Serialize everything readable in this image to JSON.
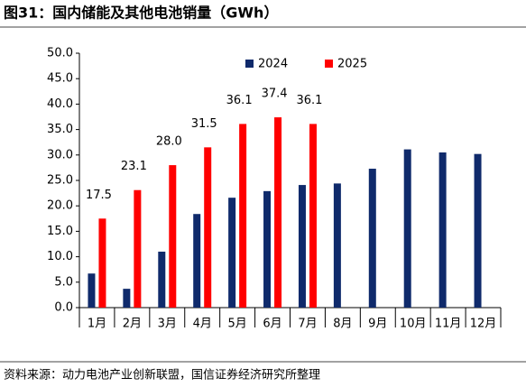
{
  "chart_data": {
    "type": "bar",
    "title": "图31：国内储能及其他电池销量（GWh）",
    "source": "资料来源：动力电池产业创新联盟，国信证券经济研究所整理",
    "categories": [
      "1月",
      "2月",
      "3月",
      "4月",
      "5月",
      "6月",
      "7月",
      "8月",
      "9月",
      "10月",
      "11月",
      "12月"
    ],
    "series": [
      {
        "name": "2024",
        "color": "#0f2a6b",
        "values": [
          6.7,
          3.7,
          11.0,
          18.4,
          21.6,
          22.9,
          24.1,
          24.4,
          27.3,
          31.1,
          30.5,
          30.2
        ]
      },
      {
        "name": "2025",
        "color": "#ff0000",
        "values": [
          17.5,
          23.1,
          28.0,
          31.5,
          36.1,
          37.4,
          36.1,
          null,
          null,
          null,
          null,
          null
        ],
        "value_labels": [
          "17.5",
          "23.1",
          "28.0",
          "31.5",
          "36.1",
          "37.4",
          "36.1",
          null,
          null,
          null,
          null,
          null
        ]
      }
    ],
    "ylim": [
      0,
      50
    ],
    "yticks": [
      {
        "value": 0,
        "label": "0.0"
      },
      {
        "value": 5,
        "label": "5.0"
      },
      {
        "value": 10,
        "label": "10.0"
      },
      {
        "value": 15,
        "label": "15.0"
      },
      {
        "value": 20,
        "label": "20.0"
      },
      {
        "value": 25,
        "label": "25.0"
      },
      {
        "value": 30,
        "label": "30.0"
      },
      {
        "value": 35,
        "label": "35.0"
      },
      {
        "value": 40,
        "label": "40.0"
      },
      {
        "value": 45,
        "label": "45.0"
      },
      {
        "value": 50,
        "label": "50.0"
      }
    ],
    "legend": "top"
  }
}
